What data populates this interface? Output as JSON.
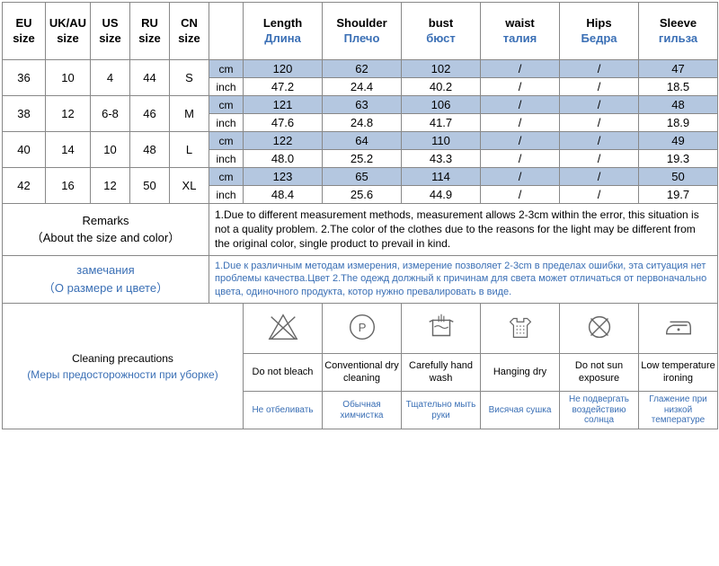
{
  "columns": {
    "eu": "EU\nsize",
    "ukau": "UK/AU\nsize",
    "us": "US\nsize",
    "ru": "RU\nsize",
    "cn": "CN\nsize",
    "length_en": "Length",
    "length_ru": "Длина",
    "shoulder_en": "Shoulder",
    "shoulder_ru": "Плечо",
    "bust_en": "bust",
    "bust_ru": "бюст",
    "waist_en": "waist",
    "waist_ru": "талия",
    "hips_en": "Hips",
    "hips_ru": "Бедра",
    "sleeve_en": "Sleeve",
    "sleeve_ru": "гильза"
  },
  "units": {
    "cm": "cm",
    "inch": "inch"
  },
  "sizes": [
    {
      "eu": "36",
      "ukau": "10",
      "us": "4",
      "ru": "44",
      "cn": "S",
      "cm": {
        "length": "120",
        "shoulder": "62",
        "bust": "102",
        "waist": "/",
        "hips": "/",
        "sleeve": "47"
      },
      "inch": {
        "length": "47.2",
        "shoulder": "24.4",
        "bust": "40.2",
        "waist": "/",
        "hips": "/",
        "sleeve": "18.5"
      }
    },
    {
      "eu": "38",
      "ukau": "12",
      "us": "6-8",
      "ru": "46",
      "cn": "M",
      "cm": {
        "length": "121",
        "shoulder": "63",
        "bust": "106",
        "waist": "/",
        "hips": "/",
        "sleeve": "48"
      },
      "inch": {
        "length": "47.6",
        "shoulder": "24.8",
        "bust": "41.7",
        "waist": "/",
        "hips": "/",
        "sleeve": "18.9"
      }
    },
    {
      "eu": "40",
      "ukau": "14",
      "us": "10",
      "ru": "48",
      "cn": "L",
      "cm": {
        "length": "122",
        "shoulder": "64",
        "bust": "110",
        "waist": "/",
        "hips": "/",
        "sleeve": "49"
      },
      "inch": {
        "length": "48.0",
        "shoulder": "25.2",
        "bust": "43.3",
        "waist": "/",
        "hips": "/",
        "sleeve": "19.3"
      }
    },
    {
      "eu": "42",
      "ukau": "16",
      "us": "12",
      "ru": "50",
      "cn": "XL",
      "cm": {
        "length": "123",
        "shoulder": "65",
        "bust": "114",
        "waist": "/",
        "hips": "/",
        "sleeve": "50"
      },
      "inch": {
        "length": "48.4",
        "shoulder": "25.6",
        "bust": "44.9",
        "waist": "/",
        "hips": "/",
        "sleeve": "19.7"
      }
    }
  ],
  "remarks": {
    "label_en": "Remarks",
    "label_en_sub": "（About the size and color）",
    "label_ru": "замечания",
    "label_ru_sub": "（О размере и цвете）",
    "text_en": "1.Due to different measurement methods, measurement allows 2-3cm within the error, this situation is not a quality problem.    2.The color of the clothes due to the reasons for the light may be different from the original color, single product to prevail in kind.",
    "text_ru": "1.Due к различным методам измерения, измерение позволяет 2-3cm в пределах ошибки, эта ситуация нет проблемы качества.Цвет 2.The одежд должный к причинам для света может отличаться от первоначально цвета, одиночного продукта, котор нужно превалировать в виде."
  },
  "cleaning": {
    "label_en": "Cleaning precautions",
    "label_ru": "(Меры предосторожности при уборке)",
    "items": [
      {
        "en": "Do not bleach",
        "ru": "Не отбеливать"
      },
      {
        "en": "Conventional dry cleaning",
        "ru": "Обычная химчистка"
      },
      {
        "en": "Carefully hand wash",
        "ru": "Тщательно мыть руки"
      },
      {
        "en": "Hanging dry",
        "ru": "Висячая сушка"
      },
      {
        "en": "Do not sun exposure",
        "ru": "Не подвергать воздействию солнца"
      },
      {
        "en": "Low temperature ironing",
        "ru": "Глажение при низкой температуре"
      }
    ]
  },
  "colors": {
    "cm_row_bg": "#b4c7e0",
    "accent": "#3a6fb5",
    "border": "#888888"
  }
}
